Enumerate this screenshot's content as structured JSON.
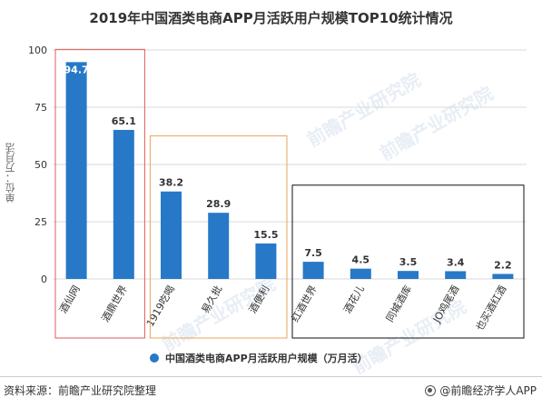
{
  "title": "2019年中国酒类电商APP月活跃用户规模TOP10统计情况",
  "ylabel": "单位：万月活",
  "legend_label": "中国酒类电商APP月活跃用户规模（万月活）",
  "source": "资料来源：前瞻产业研究院整理",
  "brand": "@前瞻经济学人APP",
  "watermark": "前瞻产业研究院",
  "colors": {
    "bar": "#2878c8",
    "grid": "#d9d9d9",
    "box1": "#e05a5a",
    "box2": "#e8a35a",
    "box3": "#111111"
  },
  "chart_data": {
    "type": "bar",
    "categories": [
      "酒仙网",
      "酒鼎世界",
      "1919吃喝",
      "易久批",
      "酒便利",
      "红酒世界",
      "酒花儿",
      "同城酒库",
      "JO鸡尾酒",
      "也买酒红酒"
    ],
    "values": [
      94.7,
      65.1,
      38.2,
      28.9,
      15.5,
      7.5,
      4.5,
      3.5,
      3.4,
      2.2
    ],
    "value_labels": [
      "94.7",
      "65.1",
      "38.2",
      "28.9",
      "15.5",
      "7.5",
      "4.5",
      "3.5",
      "3.4",
      "2.2"
    ],
    "yticks": [
      "0",
      "25",
      "50",
      "75",
      "100"
    ],
    "ylim": [
      0,
      100
    ],
    "series": [
      {
        "name": "中国酒类电商APP月活跃用户规模（万月活）",
        "values": [
          94.7,
          65.1,
          38.2,
          28.9,
          15.5,
          7.5,
          4.5,
          3.5,
          3.4,
          2.2
        ]
      }
    ],
    "groups": [
      {
        "from": 0,
        "to": 1
      },
      {
        "from": 2,
        "to": 4
      },
      {
        "from": 5,
        "to": 9
      }
    ],
    "grid": true,
    "legend_position": "bottom"
  }
}
